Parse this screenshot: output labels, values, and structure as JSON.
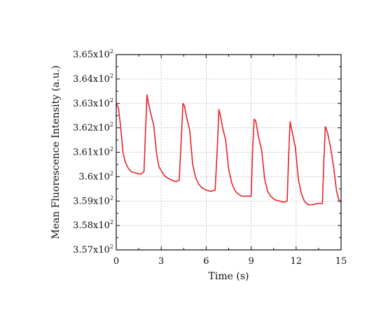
{
  "chart_data": {
    "type": "line",
    "title": "",
    "xlabel": "Time (s)",
    "ylabel": "Mean Fluorescence Intensity (a.u.)",
    "xlim": [
      0,
      15
    ],
    "ylim": [
      357,
      365
    ],
    "grid": true,
    "x_ticks": [
      {
        "value": 0,
        "label": "0"
      },
      {
        "value": 3,
        "label": "3"
      },
      {
        "value": 6,
        "label": "6"
      },
      {
        "value": 9,
        "label": "9"
      },
      {
        "value": 12,
        "label": "12"
      },
      {
        "value": 15,
        "label": "15"
      }
    ],
    "y_ticks": [
      {
        "value": 357,
        "mantissa": "3.57x10",
        "exponent": "2"
      },
      {
        "value": 358,
        "mantissa": "3.58x10",
        "exponent": "2"
      },
      {
        "value": 359,
        "mantissa": "3.59x10",
        "exponent": "2"
      },
      {
        "value": 360,
        "mantissa": "3.6x10",
        "exponent": "2"
      },
      {
        "value": 361,
        "mantissa": "3.61x10",
        "exponent": "2"
      },
      {
        "value": 362,
        "mantissa": "3.62x10",
        "exponent": "2"
      },
      {
        "value": 363,
        "mantissa": "3.63x10",
        "exponent": "2"
      },
      {
        "value": 364,
        "mantissa": "3.64x10",
        "exponent": "2"
      },
      {
        "value": 365,
        "mantissa": "3.65x10",
        "exponent": "2"
      }
    ],
    "series": [
      {
        "color": "#e8232b",
        "x": [
          0.0,
          0.15,
          0.3,
          0.45,
          0.6,
          0.8,
          1.0,
          1.3,
          1.6,
          1.85,
          1.95,
          2.05,
          2.15,
          2.3,
          2.5,
          2.7,
          2.85,
          3.0,
          3.2,
          3.4,
          3.7,
          4.0,
          4.2,
          4.35,
          4.45,
          4.55,
          4.7,
          4.9,
          5.1,
          5.3,
          5.5,
          5.7,
          6.0,
          6.3,
          6.6,
          6.75,
          6.85,
          6.95,
          7.1,
          7.3,
          7.5,
          7.7,
          7.9,
          8.1,
          8.4,
          8.7,
          9.0,
          9.1,
          9.2,
          9.3,
          9.5,
          9.7,
          9.9,
          10.1,
          10.3,
          10.6,
          10.9,
          11.2,
          11.4,
          11.5,
          11.6,
          11.75,
          11.95,
          12.15,
          12.35,
          12.55,
          12.8,
          13.1,
          13.4,
          13.75,
          13.85,
          13.95,
          14.1,
          14.3,
          14.5,
          14.7,
          14.85,
          15.0
        ],
        "y": [
          363.0,
          362.8,
          362.0,
          361.0,
          360.6,
          360.35,
          360.2,
          360.15,
          360.1,
          360.2,
          361.8,
          363.35,
          363.0,
          362.6,
          362.1,
          360.9,
          360.4,
          360.25,
          360.05,
          359.95,
          359.85,
          359.8,
          359.85,
          361.7,
          363.0,
          362.9,
          362.4,
          361.9,
          360.5,
          359.95,
          359.7,
          359.55,
          359.45,
          359.4,
          359.45,
          361.3,
          362.75,
          362.5,
          362.0,
          361.5,
          360.3,
          359.75,
          359.45,
          359.3,
          359.2,
          359.2,
          359.2,
          361.1,
          362.35,
          362.3,
          361.6,
          361.1,
          359.9,
          359.4,
          359.2,
          359.05,
          359.0,
          358.95,
          359.0,
          360.8,
          362.25,
          361.8,
          361.2,
          359.9,
          359.3,
          359.0,
          358.85,
          358.85,
          358.9,
          358.9,
          360.6,
          362.05,
          361.8,
          361.2,
          360.4,
          359.4,
          359.05,
          358.95
        ]
      }
    ]
  }
}
